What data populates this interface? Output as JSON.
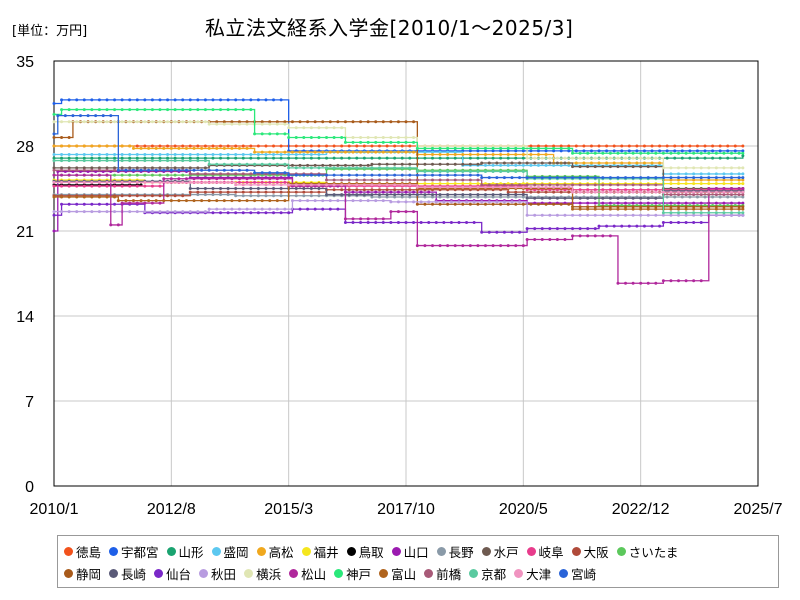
{
  "unit_label": "[単位：万円]",
  "chart_data": {
    "type": "line",
    "title": "私立法文経系入学金[2010/1～2025/3]",
    "y_ticks": [
      "0",
      "7",
      "14",
      "21",
      "28",
      "35"
    ],
    "x_ticks": [
      "2010/1",
      "2012/8",
      "2015/3",
      "2017/10",
      "2020/5",
      "2022/12",
      "2025/7"
    ],
    "x_range": [
      "2010-01",
      "2025-07"
    ],
    "ylim": [
      0,
      35
    ],
    "grid": true,
    "legend_position": "bottom",
    "series": [
      {
        "name": "徳島",
        "color": "#f2521c",
        "steps": [
          [
            "2010-01",
            28
          ],
          [
            "2025-03",
            28
          ]
        ]
      },
      {
        "name": "宇都宮",
        "color": "#1e5fe8",
        "steps": [
          [
            "2010-01",
            31.5
          ],
          [
            "2010-03",
            31.8
          ],
          [
            "2015-03",
            27.6
          ],
          [
            "2025-03",
            27.6
          ]
        ]
      },
      {
        "name": "山形",
        "color": "#1aa370",
        "steps": [
          [
            "2010-01",
            27
          ],
          [
            "2025-03",
            27.2
          ]
        ]
      },
      {
        "name": "盛岡",
        "color": "#5cc8f0",
        "steps": [
          [
            "2010-01",
            27.3
          ],
          [
            "2016-01",
            27.5
          ],
          [
            "2019-01",
            26.4
          ],
          [
            "2023-06",
            25.7
          ],
          [
            "2025-03",
            25.7
          ]
        ]
      },
      {
        "name": "高松",
        "color": "#f0a81e",
        "steps": [
          [
            "2010-01",
            28
          ],
          [
            "2011-10",
            27.8
          ],
          [
            "2014-06",
            27.5
          ],
          [
            "2018-01",
            27.3
          ],
          [
            "2021-01",
            26.6
          ],
          [
            "2023-06",
            25.2
          ],
          [
            "2025-03",
            25.2
          ]
        ]
      },
      {
        "name": "福井",
        "color": "#f5e61e",
        "steps": [
          [
            "2010-01",
            25.2
          ],
          [
            "2012-01",
            25
          ],
          [
            "2016-01",
            24.9
          ],
          [
            "2020-06",
            24.9
          ],
          [
            "2025-03",
            24.9
          ]
        ]
      },
      {
        "name": "鳥取",
        "color": "#000000",
        "steps": [
          [
            "2010-01",
            24.8
          ],
          [
            "2011-12",
            24.8
          ]
        ]
      },
      {
        "name": "山口",
        "color": "#9b1ab0",
        "steps": [
          [
            "2010-01",
            21
          ],
          [
            "2010-02",
            25.9
          ],
          [
            "2013-01",
            25.4
          ],
          [
            "2015-04",
            24.8
          ],
          [
            "2016-06",
            24.2
          ],
          [
            "2018-06",
            23.5
          ],
          [
            "2020-06",
            23.3
          ],
          [
            "2025-03",
            23.3
          ]
        ]
      },
      {
        "name": "長野",
        "color": "#8a9aa8",
        "steps": [
          [
            "2010-01",
            24
          ],
          [
            "2014-01",
            23.9
          ],
          [
            "2017-01",
            23.8
          ],
          [
            "2025-03",
            23.8
          ]
        ]
      },
      {
        "name": "水戸",
        "color": "#6e5a50",
        "steps": [
          [
            "2010-01",
            26.2
          ],
          [
            "2013-06",
            26.4
          ],
          [
            "2017-01",
            26.5
          ],
          [
            "2019-06",
            26.6
          ],
          [
            "2021-06",
            26.3
          ],
          [
            "2023-06",
            24.5
          ],
          [
            "2025-03",
            24.5
          ]
        ]
      },
      {
        "name": "岐阜",
        "color": "#e83c8c",
        "steps": [
          [
            "2010-01",
            24.7
          ],
          [
            "2012-06",
            25
          ],
          [
            "2015-03",
            24.7
          ],
          [
            "2020-06",
            24.4
          ],
          [
            "2025-03",
            24.4
          ]
        ]
      },
      {
        "name": "大阪",
        "color": "#b04a3a",
        "steps": [
          [
            "2010-01",
            23.9
          ],
          [
            "2013-01",
            24.2
          ],
          [
            "2016-01",
            24.4
          ],
          [
            "2020-01",
            24.2
          ],
          [
            "2025-03",
            24.2
          ]
        ]
      },
      {
        "name": "さいたま",
        "color": "#5cc85c",
        "steps": [
          [
            "2010-01",
            25.6
          ],
          [
            "2014-06",
            25.6
          ],
          [
            "2016-01",
            26.1
          ],
          [
            "2018-01",
            26
          ],
          [
            "2020-06",
            25.5
          ],
          [
            "2022-01",
            23.1
          ],
          [
            "2025-03",
            23.1
          ]
        ]
      },
      {
        "name": "静岡",
        "color": "#a85a1a",
        "steps": [
          [
            "2010-01",
            28.7
          ],
          [
            "2010-06",
            30
          ],
          [
            "2018-01",
            23.2
          ],
          [
            "2021-06",
            23
          ],
          [
            "2025-03",
            23
          ]
        ]
      },
      {
        "name": "長崎",
        "color": "#5a5a78",
        "steps": [
          [
            "2010-01",
            25.1
          ],
          [
            "2013-01",
            24.5
          ],
          [
            "2016-01",
            24
          ],
          [
            "2020-06",
            23.7
          ],
          [
            "2023-06",
            24.3
          ],
          [
            "2025-03",
            24.3
          ]
        ]
      },
      {
        "name": "仙台",
        "color": "#7a28c8",
        "steps": [
          [
            "2010-01",
            22.3
          ],
          [
            "2010-03",
            23.2
          ],
          [
            "2012-01",
            22.5
          ],
          [
            "2015-04",
            22.8
          ],
          [
            "2016-06",
            21.7
          ],
          [
            "2019-06",
            20.9
          ],
          [
            "2020-06",
            21.2
          ],
          [
            "2022-01",
            21.4
          ],
          [
            "2023-06",
            21.7
          ],
          [
            "2024-06",
            22.3
          ],
          [
            "2025-03",
            22.3
          ]
        ]
      },
      {
        "name": "秋田",
        "color": "#b89ce0",
        "steps": [
          [
            "2010-01",
            22.6
          ],
          [
            "2013-06",
            22.8
          ],
          [
            "2015-04",
            23.5
          ],
          [
            "2017-06",
            23.4
          ],
          [
            "2020-06",
            22.3
          ],
          [
            "2025-03",
            22.3
          ]
        ]
      },
      {
        "name": "横浜",
        "color": "#e0e6b4",
        "steps": [
          [
            "2010-01",
            30
          ],
          [
            "2013-06",
            29.8
          ],
          [
            "2015-03",
            29.5
          ],
          [
            "2016-06",
            28.7
          ],
          [
            "2018-01",
            28
          ],
          [
            "2020-06",
            27
          ],
          [
            "2023-06",
            26.2
          ],
          [
            "2025-03",
            26.2
          ]
        ]
      },
      {
        "name": "松山",
        "color": "#b0289c",
        "steps": [
          [
            "2010-01",
            25.6
          ],
          [
            "2011-04",
            21.5
          ],
          [
            "2011-07",
            23.3
          ],
          [
            "2012-06",
            25.3
          ],
          [
            "2015-04",
            24.7
          ],
          [
            "2016-06",
            22
          ],
          [
            "2017-06",
            22.6
          ],
          [
            "2018-01",
            19.8
          ],
          [
            "2020-06",
            20.3
          ],
          [
            "2021-06",
            20.6
          ],
          [
            "2022-06",
            16.7
          ],
          [
            "2023-06",
            16.9
          ],
          [
            "2024-06",
            24.5
          ],
          [
            "2025-03",
            24.5
          ]
        ]
      },
      {
        "name": "神戸",
        "color": "#2ae87a",
        "steps": [
          [
            "2010-01",
            30.6
          ],
          [
            "2010-03",
            31
          ],
          [
            "2014-06",
            29
          ],
          [
            "2015-03",
            28.7
          ],
          [
            "2016-06",
            28.3
          ],
          [
            "2018-01",
            27.8
          ],
          [
            "2021-06",
            27.4
          ],
          [
            "2025-03",
            27.4
          ]
        ]
      },
      {
        "name": "富山",
        "color": "#b0641e",
        "steps": [
          [
            "2010-01",
            23.8
          ],
          [
            "2011-06",
            23.5
          ],
          [
            "2015-03",
            24.9
          ],
          [
            "2018-01",
            24.5
          ],
          [
            "2021-06",
            22.8
          ],
          [
            "2025-03",
            22.8
          ]
        ]
      },
      {
        "name": "前橋",
        "color": "#a85a78",
        "steps": [
          [
            "2010-01",
            26
          ],
          [
            "2013-01",
            25.7
          ],
          [
            "2016-01",
            25.2
          ],
          [
            "2019-06",
            24.8
          ],
          [
            "2023-06",
            24
          ],
          [
            "2025-03",
            24
          ]
        ]
      },
      {
        "name": "京都",
        "color": "#5acaa0",
        "steps": [
          [
            "2010-01",
            26.8
          ],
          [
            "2013-06",
            26.5
          ],
          [
            "2015-03",
            26.2
          ],
          [
            "2018-01",
            25.9
          ],
          [
            "2020-06",
            25.3
          ],
          [
            "2023-06",
            22.5
          ],
          [
            "2025-03",
            22.5
          ]
        ]
      },
      {
        "name": "大津",
        "color": "#f094c0",
        "steps": [
          [
            "2010-01",
            25
          ],
          [
            "2014-01",
            24.8
          ],
          [
            "2018-01",
            24.6
          ],
          [
            "2021-06",
            24.2
          ],
          [
            "2025-03",
            24.2
          ]
        ]
      },
      {
        "name": "宮崎",
        "color": "#2a64d8",
        "steps": [
          [
            "2010-01",
            29
          ],
          [
            "2010-02",
            30.5
          ],
          [
            "2011-06",
            26
          ],
          [
            "2014-06",
            25.8
          ],
          [
            "2015-03",
            25.6
          ],
          [
            "2019-06",
            25.4
          ],
          [
            "2025-03",
            25.4
          ]
        ]
      }
    ]
  }
}
